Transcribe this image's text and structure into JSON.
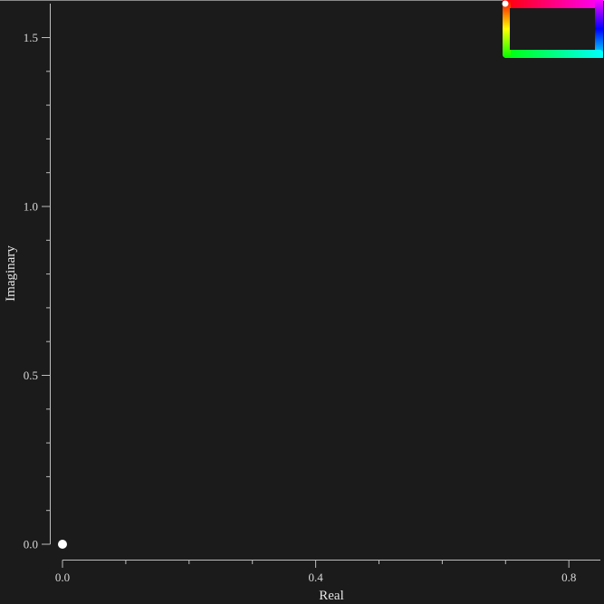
{
  "chart_data": {
    "type": "scatter",
    "xlabel": "Real",
    "ylabel": "Imaginary",
    "xlim": [
      -0.02,
      0.85
    ],
    "ylim": [
      -0.045,
      1.6
    ],
    "x_ticks": [
      {
        "value": 0.0,
        "label": "0.0"
      },
      {
        "value": 0.4,
        "label": "0.4"
      },
      {
        "value": 0.8,
        "label": "0.8"
      }
    ],
    "x_minor_ticks": [
      0.1,
      0.2,
      0.3,
      0.5,
      0.6,
      0.7
    ],
    "y_ticks": [
      {
        "value": 0.0,
        "label": "0.0"
      },
      {
        "value": 0.5,
        "label": "0.5"
      },
      {
        "value": 1.0,
        "label": "1.0"
      },
      {
        "value": 1.5,
        "label": "1.5"
      }
    ],
    "y_minor_ticks": [
      0.1,
      0.2,
      0.3,
      0.4,
      0.6,
      0.7,
      0.8,
      0.9,
      1.1,
      1.2,
      1.3,
      1.4
    ],
    "points": [
      {
        "x": 0.0,
        "y": 0.0,
        "color": "#ffffff"
      }
    ],
    "grid": false,
    "background": "#1b1b1b",
    "legend": {
      "type": "hue-gradient-frame",
      "placement": "top-right",
      "colors": [
        "#ff0000",
        "#ff00ff",
        "#0000ff",
        "#00ffff",
        "#00ff00",
        "#ffff00"
      ],
      "marker_color": "#ffffff"
    }
  }
}
